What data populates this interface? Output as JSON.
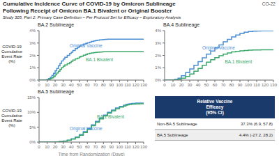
{
  "title": "Cumulative Incidence Curve of COVID-19 by Omicron Sublineage\nFollowing Receipt of Omicron BA.1 Bivalent or Original Booster",
  "subtitle": "Study 305, Part 2: Primary Case Definition – Per Protocol Set for Efficacy – Exploratory Analysis",
  "annotations": [
    "CO-22"
  ],
  "table": {
    "header": "Relative Vaccine\nEfficacy\n(95% CI)",
    "rows": [
      {
        "label": "Non-BA.5 Sublineage",
        "value": "37.3% (6.9, 57.8)"
      },
      {
        "label": "BA.5 Sublineage",
        "value": "4.4% (-27.2, 28.2)"
      }
    ]
  },
  "chart_data": [
    {
      "type": "line",
      "line_style": "step",
      "title": "BA.2 Sublineage",
      "ylabel": "COVID-19\nCumulative\nEvent Rate\n(%)",
      "xlim": [
        0,
        130
      ],
      "xticks": [
        0,
        10,
        20,
        30,
        40,
        50,
        60,
        70,
        80,
        90,
        100,
        110,
        120,
        130
      ],
      "ylim": [
        0,
        4
      ],
      "yticks": [
        {
          "value": 0,
          "label": "0%"
        },
        {
          "value": 1,
          "label": "1%"
        },
        {
          "value": 2,
          "label": "2%"
        },
        {
          "value": 3,
          "label": "3%"
        },
        {
          "value": 4,
          "label": "4%"
        }
      ],
      "x": [
        0,
        8,
        10,
        12,
        14,
        16,
        18,
        20,
        22,
        24,
        26,
        28,
        30,
        32,
        35,
        38,
        40,
        42,
        45,
        48,
        50,
        52,
        55,
        58,
        60,
        63,
        65,
        68,
        70,
        72,
        75,
        78,
        80,
        82,
        85,
        88,
        90,
        95,
        100,
        105,
        110,
        115,
        120,
        125,
        130
      ],
      "series": [
        {
          "color": "#4a8fd4",
          "values": [
            0,
            0,
            0.05,
            0.12,
            0.22,
            0.38,
            0.55,
            0.75,
            0.95,
            1.15,
            1.35,
            1.55,
            1.7,
            1.85,
            2.0,
            2.15,
            2.25,
            2.4,
            2.55,
            2.65,
            2.75,
            2.85,
            2.92,
            2.97,
            3.02,
            3.07,
            3.12,
            3.17,
            3.2,
            3.22,
            3.25,
            3.27,
            3.28,
            3.3,
            3.31,
            3.31,
            3.31,
            3.31,
            3.31,
            3.31,
            3.31,
            3.31,
            3.31,
            3.31,
            3.31
          ]
        },
        {
          "color": "#3aa86a",
          "values": [
            0,
            0,
            0.02,
            0.06,
            0.12,
            0.18,
            0.28,
            0.42,
            0.58,
            0.72,
            0.88,
            1.02,
            1.12,
            1.22,
            1.32,
            1.42,
            1.52,
            1.62,
            1.72,
            1.78,
            1.88,
            1.93,
            2.02,
            2.07,
            2.12,
            2.17,
            2.2,
            2.22,
            2.24,
            2.26,
            2.27,
            2.28,
            2.29,
            2.3,
            2.3,
            2.3,
            2.3,
            2.3,
            2.3,
            2.3,
            2.3,
            2.3,
            2.3,
            2.3,
            2.3
          ]
        }
      ],
      "annotations": [
        {
          "text": "Original Vaccine",
          "x": 38,
          "y": 2.75,
          "color": "#4a8fd4"
        },
        {
          "text": "BA.1 Bivalent",
          "x": 58,
          "y": 1.65,
          "color": "#3aa86a"
        }
      ]
    },
    {
      "type": "line",
      "line_style": "step",
      "title": "BA.4 Sublineage",
      "xlim": [
        0,
        130
      ],
      "xticks": [
        0,
        10,
        20,
        30,
        40,
        50,
        60,
        70,
        80,
        90,
        100,
        110,
        120,
        130
      ],
      "ylim": [
        0,
        4
      ],
      "yticks": [
        {
          "value": 0,
          "label": "0%"
        },
        {
          "value": 1,
          "label": "1%"
        },
        {
          "value": 2,
          "label": "2%"
        },
        {
          "value": 3,
          "label": "3%"
        },
        {
          "value": 4,
          "label": "4%"
        }
      ],
      "x": [
        0,
        8,
        12,
        16,
        20,
        25,
        30,
        35,
        40,
        45,
        50,
        55,
        60,
        65,
        70,
        75,
        80,
        85,
        90,
        95,
        100,
        105,
        110,
        115,
        120,
        125,
        130
      ],
      "series": [
        {
          "color": "#4a8fd4",
          "values": [
            0,
            0,
            0.05,
            0.15,
            0.35,
            0.6,
            0.9,
            1.2,
            1.5,
            1.8,
            2.1,
            2.35,
            2.6,
            2.85,
            3.1,
            3.3,
            3.5,
            3.65,
            3.78,
            3.87,
            3.93,
            3.96,
            3.97,
            3.98,
            3.98,
            3.98,
            3.98
          ]
        },
        {
          "color": "#3aa86a",
          "values": [
            0,
            0,
            0.02,
            0.06,
            0.15,
            0.3,
            0.5,
            0.72,
            0.95,
            1.2,
            1.45,
            1.65,
            1.82,
            1.97,
            2.1,
            2.2,
            2.28,
            2.33,
            2.37,
            2.4,
            2.42,
            2.43,
            2.44,
            2.45,
            2.45,
            2.45,
            2.45
          ]
        }
      ],
      "annotations": [
        {
          "text": "Original Vaccine",
          "x": 45,
          "y": 2.6,
          "color": "#4a8fd4"
        },
        {
          "text": "BA.1 Bivalent",
          "x": 72,
          "y": 1.5,
          "color": "#3aa86a"
        }
      ]
    },
    {
      "type": "line",
      "line_style": "step",
      "title": "BA.5 Sublineage",
      "ylabel": "COVID-19\nCumulative\nEvent Rate\n(%)",
      "xlabel": "Time from Randomization (Days)",
      "xlim": [
        0,
        130
      ],
      "xticks": [
        0,
        10,
        20,
        30,
        40,
        50,
        60,
        70,
        80,
        90,
        100,
        110,
        120,
        130
      ],
      "ylim": [
        0,
        15
      ],
      "yticks": [
        {
          "value": 0,
          "label": "0%"
        },
        {
          "value": 5,
          "label": "5%"
        },
        {
          "value": 10,
          "label": "10%"
        },
        {
          "value": 15,
          "label": "15%"
        }
      ],
      "x": [
        0,
        10,
        15,
        20,
        25,
        30,
        35,
        40,
        45,
        50,
        55,
        60,
        65,
        70,
        75,
        80,
        85,
        90,
        95,
        100,
        105,
        108,
        110,
        112,
        115,
        120,
        125,
        130
      ],
      "series": [
        {
          "color": "#4a8fd4",
          "values": [
            0,
            0,
            0.02,
            0.08,
            0.18,
            0.35,
            0.65,
            1.1,
            1.7,
            2.5,
            3.5,
            4.6,
            5.8,
            7.0,
            8.1,
            9.1,
            10.0,
            10.8,
            11.5,
            12.0,
            12.4,
            12.7,
            12.8,
            12.9,
            13.0,
            13.1,
            13.15,
            13.2
          ]
        },
        {
          "color": "#3aa86a",
          "values": [
            0,
            0,
            0.01,
            0.06,
            0.15,
            0.3,
            0.58,
            1.0,
            1.55,
            2.3,
            3.2,
            4.3,
            5.5,
            6.7,
            7.8,
            8.8,
            9.7,
            10.5,
            11.2,
            11.75,
            12.15,
            12.45,
            12.55,
            12.65,
            12.75,
            12.85,
            12.9,
            12.95
          ]
        }
      ],
      "annotations": [
        {
          "text": "Original Vaccine",
          "x": 38,
          "y": 4.5,
          "color": "#4a8fd4"
        },
        {
          "text": "BA.1 Bivalent",
          "x": 72,
          "y": 8.5,
          "color": "#3aa86a"
        }
      ]
    }
  ]
}
